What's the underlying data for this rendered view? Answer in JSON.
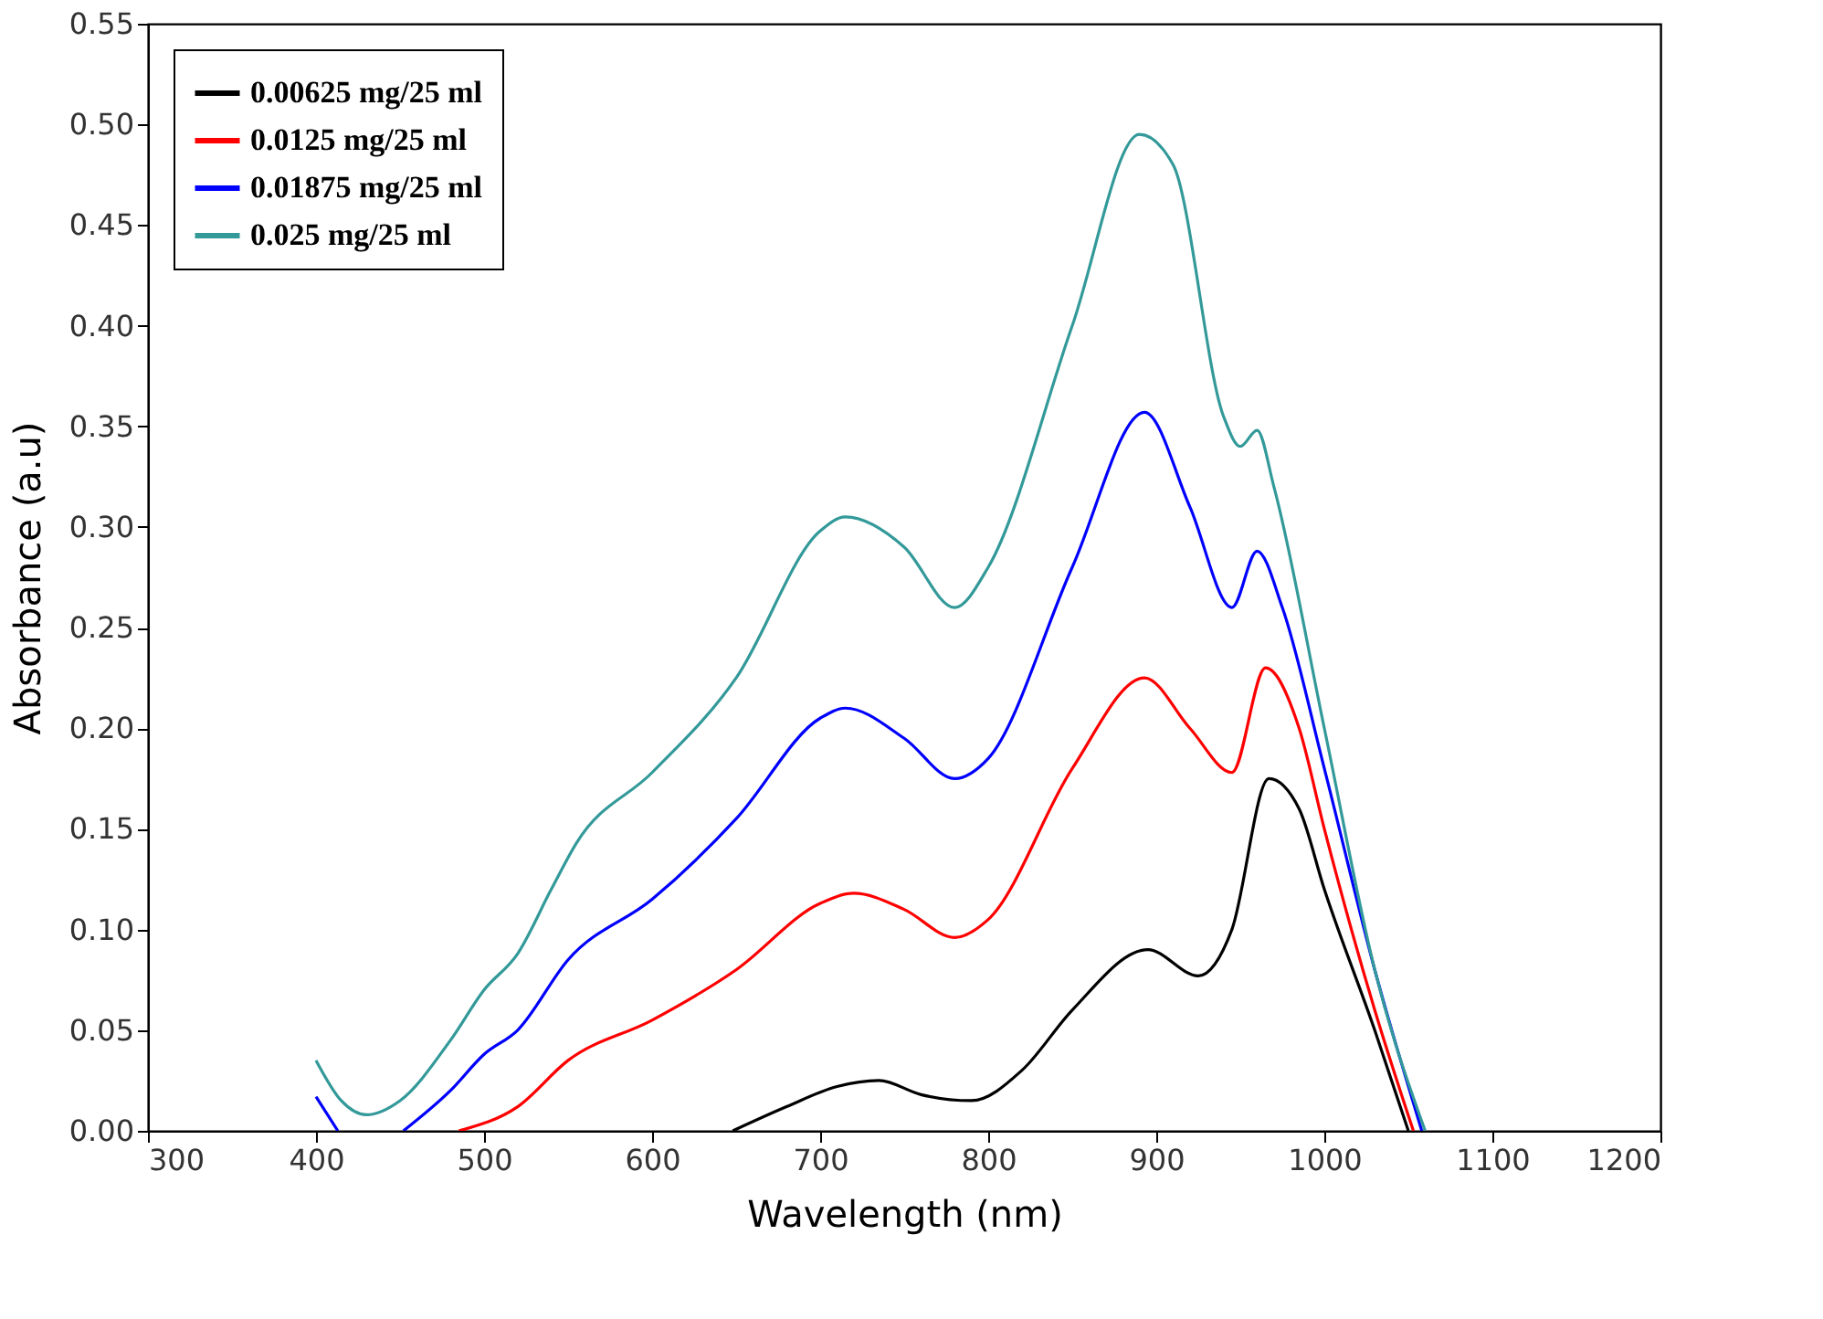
{
  "chart_data": {
    "type": "line",
    "xlabel": "Wavelength (nm)",
    "ylabel": "Absorbance (a.u)",
    "xlim": [
      300,
      1200
    ],
    "xticks": [
      300,
      400,
      500,
      600,
      700,
      800,
      900,
      1000,
      1100,
      1200
    ],
    "ylim": [
      0,
      0.55
    ],
    "yticks": [
      {
        "value": 0,
        "label": "0.00"
      },
      {
        "value": 0.05,
        "label": "0.05"
      },
      {
        "value": 0.1,
        "label": "0.10"
      },
      {
        "value": 0.15,
        "label": "0.15"
      },
      {
        "value": 0.2,
        "label": "0.20"
      },
      {
        "value": 0.25,
        "label": "0.25"
      },
      {
        "value": 0.3,
        "label": "0.30"
      },
      {
        "value": 0.35,
        "label": "0.35"
      },
      {
        "value": 0.4,
        "label": "0.40"
      },
      {
        "value": 0.45,
        "label": "0.45"
      },
      {
        "value": 0.5,
        "label": "0.50"
      },
      {
        "value": 0.55,
        "label": "0.55"
      }
    ],
    "grid": false,
    "legend": "top left",
    "line_style": "solid",
    "marker": "none",
    "series": [
      {
        "name": "0.00625 mg/25 ml",
        "color": "#000000",
        "x": [
          648,
          680,
          710,
          735,
          760,
          790,
          820,
          850,
          895,
          925,
          945,
          967,
          985,
          1000,
          1030,
          1050
        ],
        "values": [
          0.0,
          0.012,
          0.022,
          0.025,
          0.018,
          0.015,
          0.03,
          0.06,
          0.09,
          0.077,
          0.1,
          0.175,
          0.16,
          0.12,
          0.05,
          0.0
        ]
      },
      {
        "name": "0.0125 mg/25 ml",
        "color": "#ff0000",
        "x": [
          485,
          520,
          550,
          600,
          650,
          700,
          720,
          750,
          780,
          800,
          850,
          893,
          920,
          945,
          965,
          985,
          1000,
          1030,
          1053
        ],
        "values": [
          0.0,
          0.012,
          0.035,
          0.055,
          0.08,
          0.113,
          0.118,
          0.11,
          0.096,
          0.105,
          0.18,
          0.225,
          0.2,
          0.178,
          0.23,
          0.2,
          0.15,
          0.06,
          0.0
        ]
      },
      {
        "name": "0.01875 mg/25 ml",
        "color": "#0000ff",
        "x": [
          400,
          413,
          432,
          452,
          480,
          500,
          520,
          550,
          600,
          650,
          700,
          715,
          750,
          780,
          800,
          850,
          893,
          920,
          945,
          960,
          975,
          1000,
          1030,
          1058
        ],
        "values": [
          0.017,
          0.0,
          null,
          0.0,
          0.02,
          0.038,
          0.05,
          0.085,
          0.115,
          0.155,
          0.205,
          0.21,
          0.195,
          0.175,
          0.185,
          0.28,
          0.357,
          0.31,
          0.26,
          0.288,
          0.26,
          0.18,
          0.08,
          0.0
        ]
      },
      {
        "name": "0.025 mg/25 ml",
        "color": "#339999",
        "x": [
          400,
          415,
          430,
          450,
          480,
          500,
          520,
          540,
          555,
          600,
          650,
          700,
          715,
          750,
          780,
          800,
          850,
          890,
          910,
          940,
          950,
          960,
          970,
          1000,
          1030,
          1060
        ],
        "values": [
          0.035,
          0.015,
          0.008,
          0.015,
          0.045,
          0.07,
          0.088,
          0.12,
          0.143,
          0.178,
          0.225,
          0.298,
          0.305,
          0.29,
          0.26,
          0.28,
          0.4,
          0.495,
          0.48,
          0.355,
          0.34,
          0.348,
          0.32,
          0.2,
          0.08,
          0.0
        ]
      }
    ]
  }
}
